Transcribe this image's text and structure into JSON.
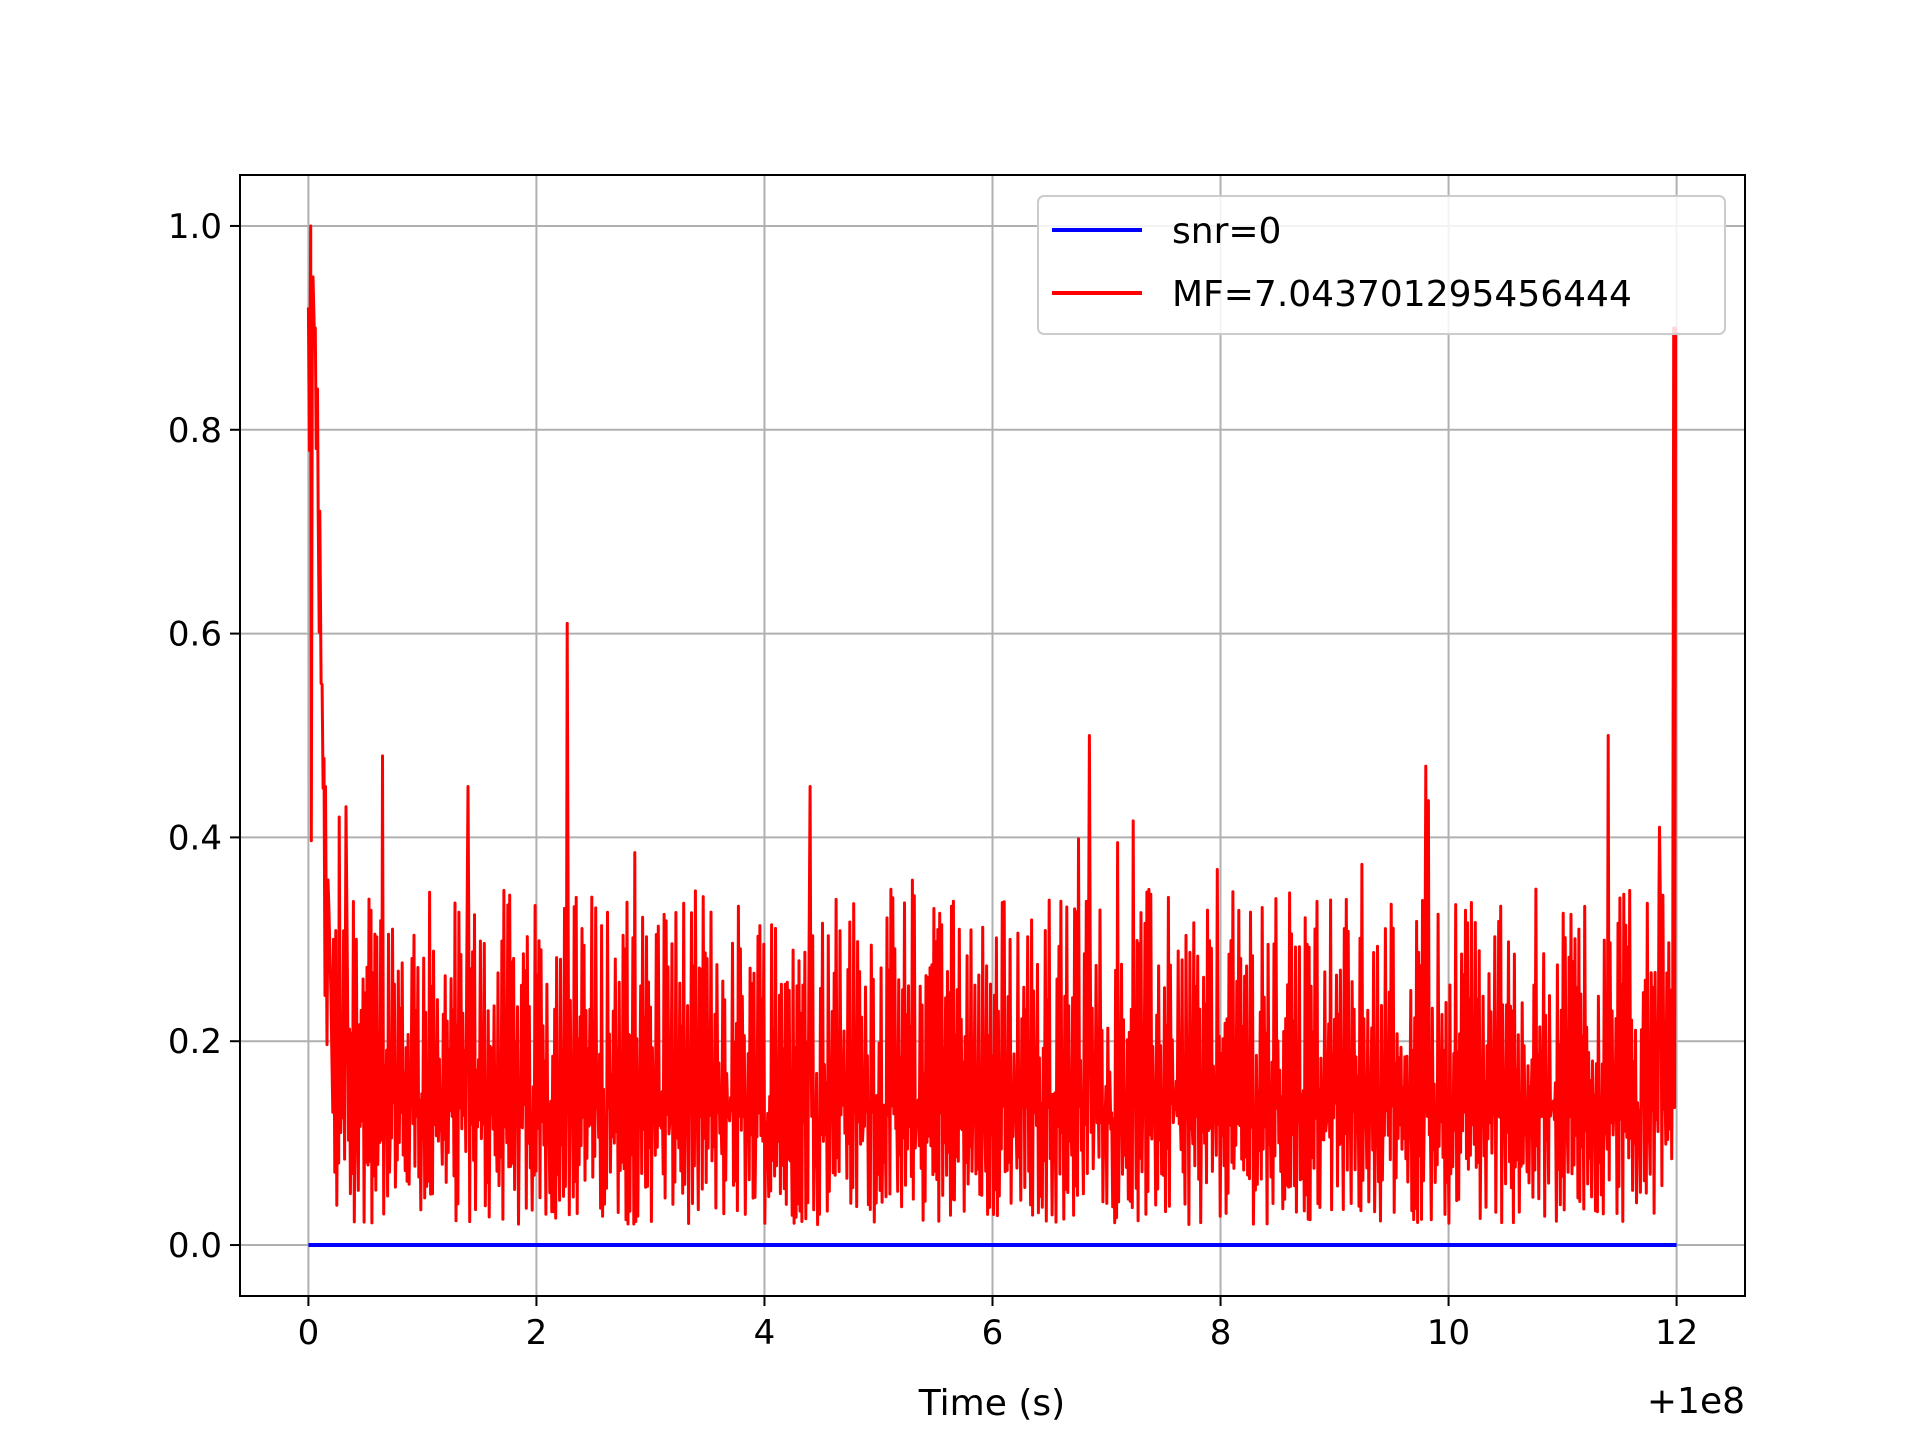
{
  "chart_data": {
    "type": "line",
    "xlabel": "Time (s)",
    "ylabel": "",
    "title": "",
    "x_offset_label": "+1e8",
    "xlim": [
      -0.6,
      12.6
    ],
    "ylim": [
      -0.05,
      1.05
    ],
    "x_ticks": [
      {
        "value": 0,
        "label": "0"
      },
      {
        "value": 2,
        "label": "2"
      },
      {
        "value": 4,
        "label": "4"
      },
      {
        "value": 6,
        "label": "6"
      },
      {
        "value": 8,
        "label": "8"
      },
      {
        "value": 10,
        "label": "10"
      },
      {
        "value": 12,
        "label": "12"
      }
    ],
    "y_ticks": [
      {
        "value": 0.0,
        "label": "0.0"
      },
      {
        "value": 0.2,
        "label": "0.2"
      },
      {
        "value": 0.4,
        "label": "0.4"
      },
      {
        "value": 0.6,
        "label": "0.6"
      },
      {
        "value": 0.8,
        "label": "0.8"
      },
      {
        "value": 1.0,
        "label": "1.0"
      }
    ],
    "grid": true,
    "legend_position": "top-right",
    "series": [
      {
        "name": "snr=0",
        "color": "#0000ff",
        "x": [
          0,
          12
        ],
        "y": [
          0,
          0
        ]
      },
      {
        "name": "MF=7.043701295456444",
        "color": "#ff0000",
        "x": [
          0.0,
          0.02,
          0.04,
          0.06,
          0.08,
          0.1,
          0.12,
          0.15,
          0.18,
          0.22,
          0.27,
          0.33,
          0.42,
          0.65,
          1.4,
          2.27,
          4.4,
          6.85,
          9.8,
          11.4,
          11.85,
          11.95,
          12.0
        ],
        "y": [
          0.92,
          1.0,
          0.95,
          0.9,
          0.84,
          0.72,
          0.55,
          0.45,
          0.33,
          0.3,
          0.42,
          0.43,
          0.3,
          0.48,
          0.45,
          0.61,
          0.45,
          0.5,
          0.47,
          0.5,
          0.41,
          0.25,
          0.9
        ],
        "noise_low": 0.02,
        "noise_high": 0.35
      }
    ]
  }
}
